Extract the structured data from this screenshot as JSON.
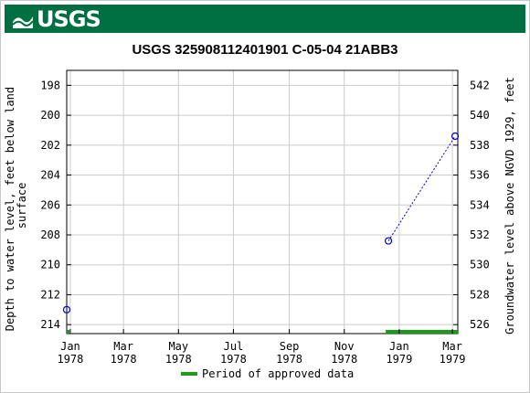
{
  "banner": {
    "logo_text": "USGS",
    "logo_icon": "usgs-wave-icon",
    "color": "#006f41"
  },
  "chart_data": {
    "type": "scatter",
    "title": "USGS 325908112401901 C-05-04 21ABB3",
    "ylabel_left": "Depth to water level, feet below land surface",
    "ylabel_right": "Groundwater level above NGVD 1929, feet",
    "x_ticks": [
      {
        "label": "Jan",
        "year": "1978",
        "date": "1978-01-01"
      },
      {
        "label": "Mar",
        "year": "1978",
        "date": "1978-03-01"
      },
      {
        "label": "May",
        "year": "1978",
        "date": "1978-05-01"
      },
      {
        "label": "Jul",
        "year": "1978",
        "date": "1978-07-01"
      },
      {
        "label": "Sep",
        "year": "1978",
        "date": "1978-09-01"
      },
      {
        "label": "Nov",
        "year": "1978",
        "date": "1978-11-01"
      },
      {
        "label": "Jan",
        "year": "1979",
        "date": "1979-01-01"
      },
      {
        "label": "Mar",
        "year": "1979",
        "date": "1979-03-01"
      }
    ],
    "xlim": [
      "1977-12-28",
      "1979-03-07"
    ],
    "ylim_left": [
      214.6,
      197.0
    ],
    "y_ticks_left": [
      198,
      200,
      202,
      204,
      206,
      208,
      210,
      212,
      214
    ],
    "y_ticks_right": [
      542,
      540,
      538,
      536,
      534,
      532,
      530,
      528,
      526
    ],
    "right_axis_offset": 740,
    "grid": true,
    "series": [
      {
        "points": [
          {
            "date": "1977-12-28",
            "depth": 213.0
          },
          {
            "date": "1978-12-20",
            "depth": 208.4
          },
          {
            "date": "1979-03-04",
            "depth": 201.4
          }
        ],
        "color": "#0000cc",
        "marker": "open-circle"
      }
    ],
    "approved_periods": [
      {
        "start": "1977-12-28",
        "end": "1977-12-29"
      },
      {
        "start": "1978-12-17",
        "end": "1979-03-07"
      }
    ],
    "approved_color": "#1a9c1a",
    "legend": {
      "label": "Period of approved data",
      "placement": "bottom-center"
    }
  }
}
